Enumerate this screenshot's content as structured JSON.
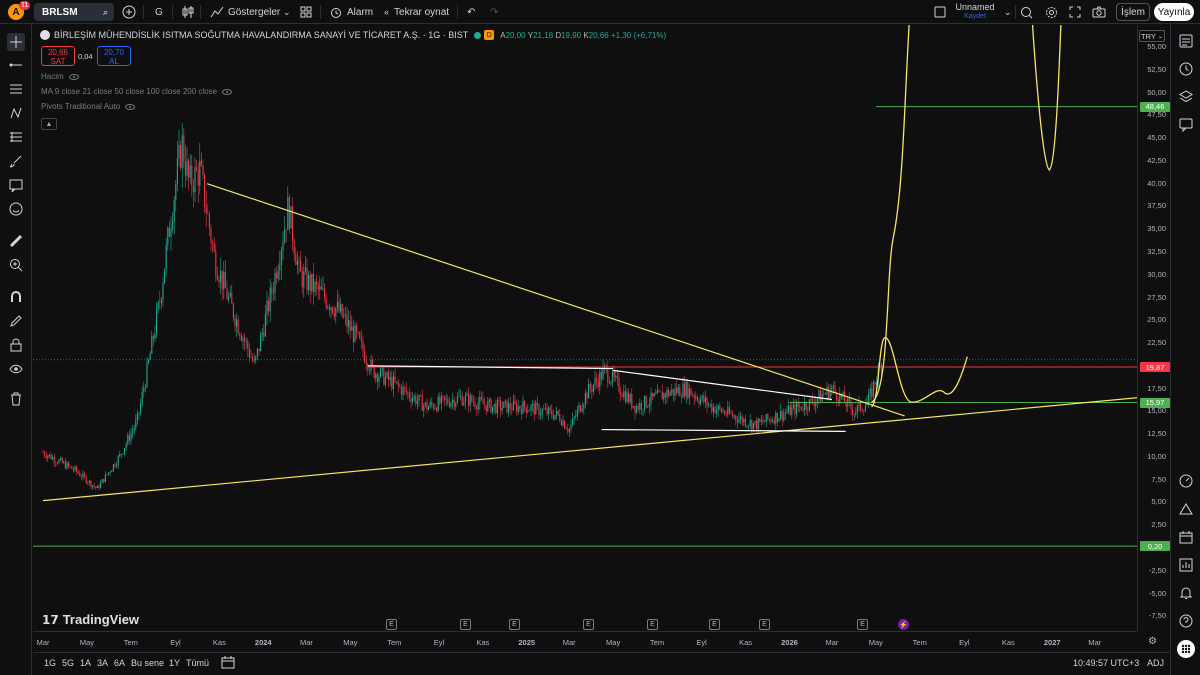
{
  "header": {
    "avatar_letter": "A",
    "notifications": "11",
    "symbol": "BRLSM",
    "interval": "G",
    "indicators_label": "Göstergeler",
    "alarm_label": "Alarm",
    "replay_label": "Tekrar oynat",
    "layout_name": "Unnamed",
    "layout_save": "Kaydet",
    "trade_label": "İşlem",
    "publish_label": "Yayınla"
  },
  "legend": {
    "title": "BİRLEŞİM MÜHENDİSLİK ISITMA SOĞUTMA HAVALANDIRMA SANAYİ VE TİCARET A.Ş. · 1G · BIST",
    "interval_badge": "D",
    "ohlc": [
      {
        "k": "A",
        "v": "20,00"
      },
      {
        "k": "Y",
        "v": "21,18"
      },
      {
        "k": "D",
        "v": "19,90"
      },
      {
        "k": "K",
        "v": "20,66"
      }
    ],
    "change": "+1,30 (+6,71%)",
    "sell_price": "20,66",
    "sell_label": "SAT",
    "spread": "0,04",
    "buy_price": "20,70",
    "buy_label": "AL",
    "indicators": [
      "Hacim",
      "MA 9 close 21 close 50 close 100 close 200 close",
      "Pivots Traditional Auto"
    ]
  },
  "currency": "TRY",
  "price_axis": {
    "ticks": [
      "55,00",
      "52,50",
      "50,00",
      "47,50",
      "45,00",
      "42,50",
      "40,00",
      "37,50",
      "35,00",
      "32,50",
      "30,00",
      "27,50",
      "25,00",
      "22,50",
      "20,00",
      "17,50",
      "15,00",
      "12,50",
      "10,00",
      "7,50",
      "5,00",
      "2,50",
      "0,00",
      "-2,50",
      "-5,00",
      "-7,50"
    ],
    "tags": [
      {
        "label": "48,46",
        "value": 48.46,
        "color": "#4caf50"
      },
      {
        "label": "19,87",
        "value": 19.87,
        "color": "#f23645"
      },
      {
        "label": "15,97",
        "value": 15.97,
        "color": "#4caf50"
      },
      {
        "label": "0,20",
        "value": 0.2,
        "color": "#4caf50"
      }
    ]
  },
  "time_axis": [
    "Mar",
    "May",
    "Tem",
    "Eyl",
    "Kas",
    "2024",
    "Mar",
    "May",
    "Tem",
    "Eyl",
    "Kas",
    "2025",
    "Mar",
    "May",
    "Tem",
    "Eyl",
    "Kas",
    "2026",
    "Mar",
    "May",
    "Tem",
    "Eyl",
    "Kas",
    "2027",
    "Mar"
  ],
  "events": [
    "E",
    "E",
    "E",
    "E",
    "E",
    "E",
    "E",
    "E"
  ],
  "bottom": {
    "ranges": [
      "1G",
      "5G",
      "1A",
      "3A",
      "6A",
      "Bu sene",
      "1Y",
      "Tümü"
    ],
    "clock": "10:49:57 UTC+3",
    "adj": "ADJ"
  },
  "branding": "TradingView",
  "colors": {
    "up": "#22ab94",
    "down": "#f23645",
    "trend": "#f5e663",
    "support": "#ffffff",
    "level_green": "#4caf50",
    "level_red": "#f23645"
  },
  "chart_data": {
    "type": "candlestick",
    "title": "",
    "currency": "TRY",
    "ylim": [
      -8.5,
      56
    ],
    "x_range": [
      "2023-03",
      "2027-04"
    ],
    "price_path": [
      [
        "2023-03-01",
        10.5
      ],
      [
        "2023-04-15",
        8.5
      ],
      [
        "2023-05-15",
        6.5
      ],
      [
        "2023-06-15",
        10.0
      ],
      [
        "2023-07-10",
        14.0
      ],
      [
        "2023-07-25",
        20.0
      ],
      [
        "2023-08-10",
        27.0
      ],
      [
        "2023-08-25",
        36.0
      ],
      [
        "2023-09-10",
        44.5
      ],
      [
        "2023-09-20",
        40.0
      ],
      [
        "2023-10-05",
        41.5
      ],
      [
        "2023-10-25",
        32.0
      ],
      [
        "2023-11-15",
        27.0
      ],
      [
        "2023-12-10",
        22.0
      ],
      [
        "2023-12-20",
        20.0
      ],
      [
        "2024-01-15",
        29.0
      ],
      [
        "2024-02-05",
        37.5
      ],
      [
        "2024-02-20",
        30.0
      ],
      [
        "2024-03-20",
        28.0
      ],
      [
        "2024-04-15",
        26.0
      ],
      [
        "2024-05-10",
        23.0
      ],
      [
        "2024-06-01",
        19.5
      ],
      [
        "2024-07-01",
        18.0
      ],
      [
        "2024-08-15",
        15.5
      ],
      [
        "2024-10-01",
        16.5
      ],
      [
        "2024-11-15",
        15.5
      ],
      [
        "2025-01-01",
        15.5
      ],
      [
        "2025-02-15",
        14.5
      ],
      [
        "2025-03-01",
        13.0
      ],
      [
        "2025-03-25",
        17.0
      ],
      [
        "2025-04-20",
        19.5
      ],
      [
        "2025-06-01",
        15.5
      ],
      [
        "2025-07-15",
        17.0
      ],
      [
        "2025-08-10",
        17.5
      ],
      [
        "2025-09-15",
        15.5
      ],
      [
        "2025-10-15",
        14.5
      ],
      [
        "2025-11-15",
        13.5
      ],
      [
        "2025-12-15",
        14.5
      ],
      [
        "2026-02-01",
        16.0
      ],
      [
        "2026-03-01",
        17.5
      ],
      [
        "2026-04-01",
        15.0
      ],
      [
        "2026-04-20",
        16.0
      ],
      [
        "2026-05-10",
        20.66
      ]
    ],
    "horizontal_levels": [
      48.46,
      19.87,
      15.97,
      0.2
    ],
    "trendlines": [
      {
        "color": "yellow",
        "from": [
          "2023-03-01",
          5.2
        ],
        "to": [
          "2027-04-30",
          16.5
        ]
      },
      {
        "color": "yellow",
        "from": [
          "2023-10-15",
          40.0
        ],
        "to": [
          "2026-06-10",
          14.5
        ]
      },
      {
        "color": "white",
        "from": [
          "2024-05-25",
          20.0
        ],
        "to": [
          "2025-05-01",
          19.7
        ]
      },
      {
        "color": "white",
        "from": [
          "2025-05-01",
          19.5
        ],
        "to": [
          "2026-03-01",
          16.3
        ]
      },
      {
        "color": "white",
        "from": [
          "2025-04-15",
          13.0
        ],
        "to": [
          "2026-03-20",
          12.8
        ]
      }
    ]
  }
}
